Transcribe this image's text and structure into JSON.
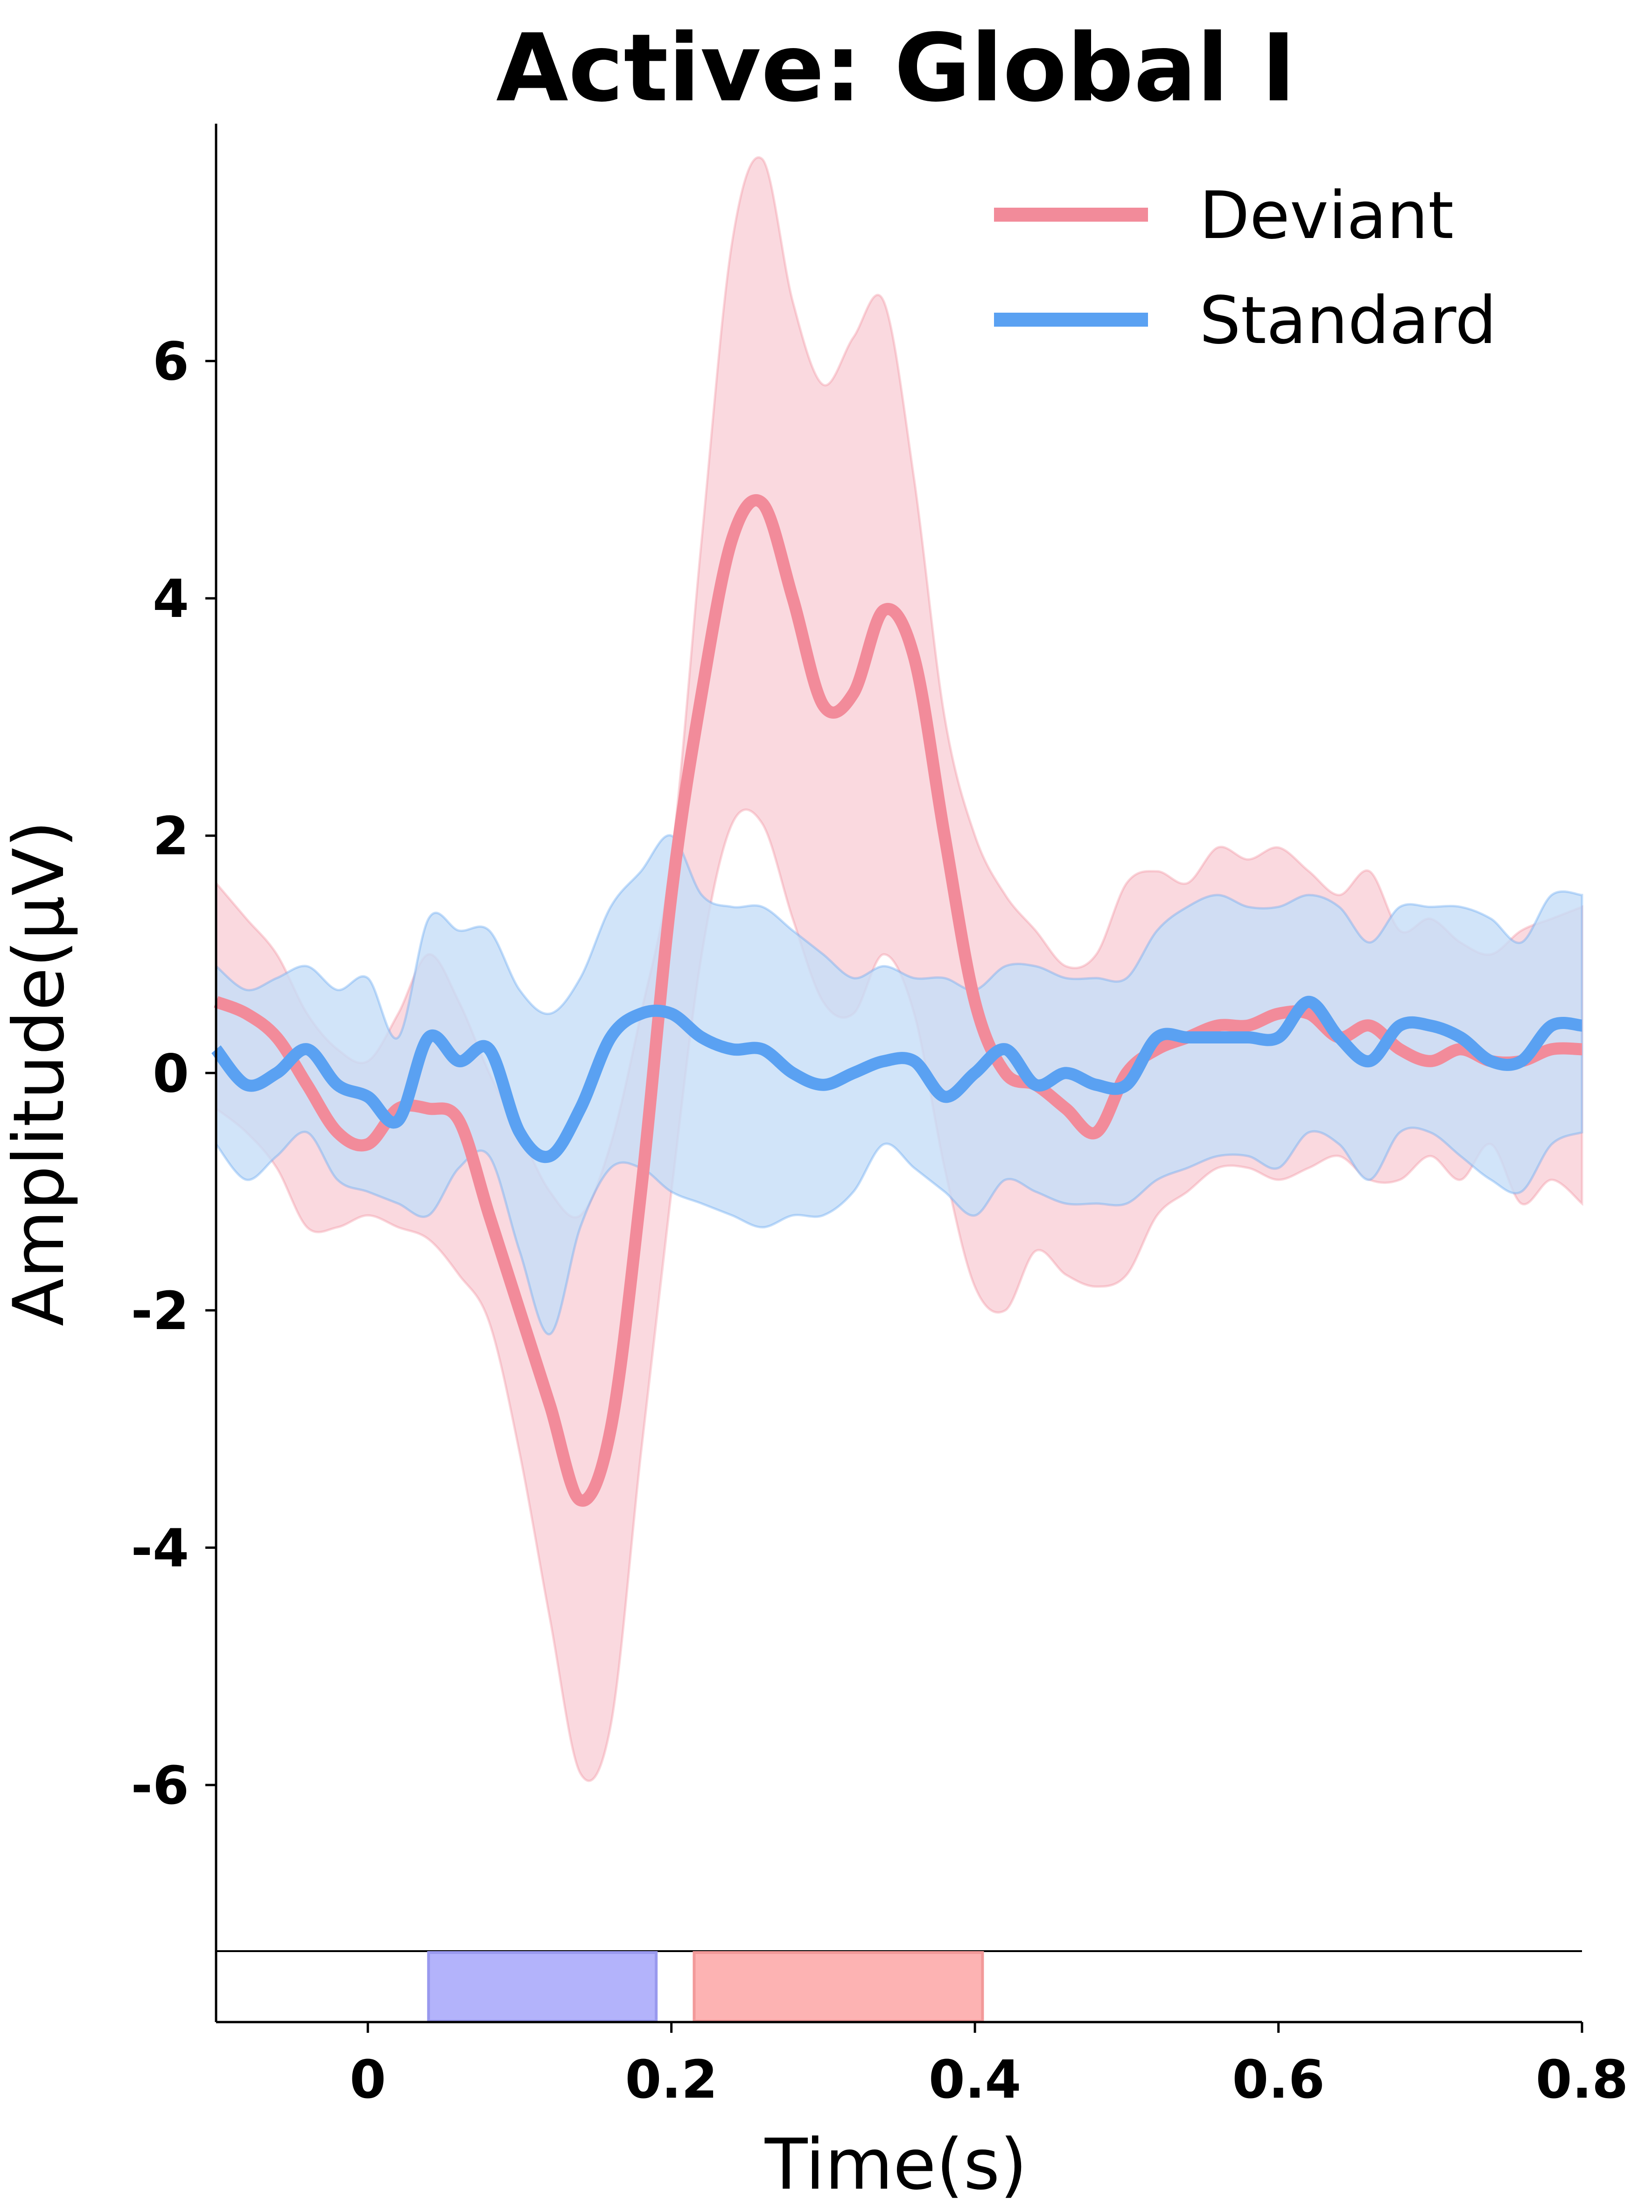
{
  "chart_data": {
    "type": "line",
    "title": "Active: Global I",
    "xlabel": "Time(s)",
    "ylabel": "Amplitude(μV)",
    "xlim": [
      -0.1,
      0.8
    ],
    "ylim": [
      -7.4,
      8.0
    ],
    "x_ticks": [
      0,
      0.2,
      0.4,
      0.6,
      0.8
    ],
    "x_tick_labels": [
      "0",
      "0.2",
      "0.4",
      "0.6",
      "0.8"
    ],
    "y_ticks": [
      -6,
      -4,
      -2,
      0,
      2,
      4,
      6
    ],
    "y_tick_labels": [
      "-6",
      "-4",
      "-2",
      "0",
      "2",
      "4",
      "6"
    ],
    "grid": false,
    "legend_position": "top-right",
    "series": [
      {
        "name": "Deviant",
        "color": "#f28b9a",
        "band_color": "#f9d0d7",
        "x": [
          -0.1,
          -0.08,
          -0.06,
          -0.04,
          -0.02,
          0.0,
          0.02,
          0.04,
          0.06,
          0.08,
          0.1,
          0.12,
          0.14,
          0.16,
          0.18,
          0.2,
          0.22,
          0.24,
          0.26,
          0.28,
          0.3,
          0.32,
          0.34,
          0.36,
          0.38,
          0.4,
          0.42,
          0.44,
          0.46,
          0.48,
          0.5,
          0.52,
          0.54,
          0.56,
          0.58,
          0.6,
          0.62,
          0.64,
          0.66,
          0.68,
          0.7,
          0.72,
          0.74,
          0.76,
          0.78,
          0.8
        ],
        "y": [
          0.6,
          0.5,
          0.3,
          -0.1,
          -0.5,
          -0.6,
          -0.3,
          -0.3,
          -0.4,
          -1.2,
          -2.0,
          -2.8,
          -3.6,
          -3.0,
          -1.0,
          1.5,
          3.2,
          4.5,
          4.8,
          4.0,
          3.1,
          3.2,
          3.9,
          3.5,
          2.0,
          0.6,
          0.0,
          -0.1,
          -0.3,
          -0.5,
          0.0,
          0.2,
          0.3,
          0.4,
          0.4,
          0.5,
          0.5,
          0.3,
          0.4,
          0.2,
          0.1,
          0.2,
          0.1,
          0.1,
          0.2,
          0.2
        ],
        "upper": [
          1.6,
          1.3,
          1.0,
          0.5,
          0.2,
          0.1,
          0.5,
          1.0,
          0.6,
          0.0,
          -0.5,
          -1.0,
          -1.2,
          -0.6,
          0.5,
          1.8,
          4.5,
          7.0,
          7.7,
          6.5,
          5.8,
          6.2,
          6.5,
          5.0,
          3.0,
          2.0,
          1.5,
          1.2,
          0.9,
          1.0,
          1.6,
          1.7,
          1.6,
          1.9,
          1.8,
          1.9,
          1.7,
          1.5,
          1.7,
          1.2,
          1.3,
          1.1,
          1.0,
          1.2,
          1.3,
          1.4
        ],
        "lower": [
          -0.3,
          -0.5,
          -0.8,
          -1.3,
          -1.3,
          -1.2,
          -1.3,
          -1.4,
          -1.7,
          -2.1,
          -3.2,
          -4.6,
          -5.9,
          -5.5,
          -3.2,
          -1.0,
          1.0,
          2.1,
          2.1,
          1.3,
          0.6,
          0.5,
          1.0,
          0.5,
          -0.8,
          -1.8,
          -2.0,
          -1.5,
          -1.7,
          -1.8,
          -1.7,
          -1.2,
          -1.0,
          -0.8,
          -0.8,
          -0.9,
          -0.8,
          -0.7,
          -0.9,
          -0.9,
          -0.7,
          -0.9,
          -0.6,
          -1.1,
          -0.9,
          -1.1
        ]
      },
      {
        "name": "Standard",
        "color": "#5aa1f2",
        "band_color": "#c5ddf7",
        "x": [
          -0.1,
          -0.08,
          -0.06,
          -0.04,
          -0.02,
          0.0,
          0.02,
          0.04,
          0.06,
          0.08,
          0.1,
          0.12,
          0.14,
          0.16,
          0.18,
          0.2,
          0.22,
          0.24,
          0.26,
          0.28,
          0.3,
          0.32,
          0.34,
          0.36,
          0.38,
          0.4,
          0.42,
          0.44,
          0.46,
          0.48,
          0.5,
          0.52,
          0.54,
          0.56,
          0.58,
          0.6,
          0.62,
          0.64,
          0.66,
          0.68,
          0.7,
          0.72,
          0.74,
          0.76,
          0.78,
          0.8
        ],
        "y": [
          0.2,
          -0.1,
          0.0,
          0.2,
          -0.1,
          -0.2,
          -0.4,
          0.3,
          0.1,
          0.2,
          -0.5,
          -0.7,
          -0.3,
          0.3,
          0.5,
          0.5,
          0.3,
          0.2,
          0.2,
          0.0,
          -0.1,
          0.0,
          0.1,
          0.1,
          -0.2,
          0.0,
          0.2,
          -0.1,
          0.0,
          -0.1,
          -0.1,
          0.3,
          0.3,
          0.3,
          0.3,
          0.3,
          0.6,
          0.3,
          0.1,
          0.4,
          0.4,
          0.3,
          0.1,
          0.1,
          0.4,
          0.4
        ],
        "upper": [
          0.9,
          0.7,
          0.8,
          0.9,
          0.7,
          0.8,
          0.3,
          1.3,
          1.2,
          1.2,
          0.7,
          0.5,
          0.8,
          1.4,
          1.7,
          2.0,
          1.5,
          1.4,
          1.4,
          1.2,
          1.0,
          0.8,
          0.9,
          0.8,
          0.8,
          0.7,
          0.9,
          0.9,
          0.8,
          0.8,
          0.8,
          1.2,
          1.4,
          1.5,
          1.4,
          1.4,
          1.5,
          1.4,
          1.1,
          1.4,
          1.4,
          1.4,
          1.3,
          1.1,
          1.5,
          1.5
        ],
        "lower": [
          -0.6,
          -0.9,
          -0.7,
          -0.5,
          -0.9,
          -1.0,
          -1.1,
          -1.2,
          -0.8,
          -0.7,
          -1.5,
          -2.2,
          -1.3,
          -0.8,
          -0.8,
          -1.0,
          -1.1,
          -1.2,
          -1.3,
          -1.2,
          -1.2,
          -1.0,
          -0.6,
          -0.8,
          -1.0,
          -1.2,
          -0.9,
          -1.0,
          -1.1,
          -1.1,
          -1.1,
          -0.9,
          -0.8,
          -0.7,
          -0.7,
          -0.8,
          -0.5,
          -0.6,
          -0.9,
          -0.5,
          -0.5,
          -0.7,
          -0.9,
          -1.0,
          -0.6,
          -0.5
        ]
      }
    ],
    "significance_bands": [
      {
        "x_start": 0.04,
        "x_end": 0.19,
        "color": "#b3b3fb",
        "edge_color": "#9999ee"
      },
      {
        "x_start": 0.215,
        "x_end": 0.405,
        "color": "#fdb3b3",
        "edge_color": "#f29999"
      }
    ]
  }
}
